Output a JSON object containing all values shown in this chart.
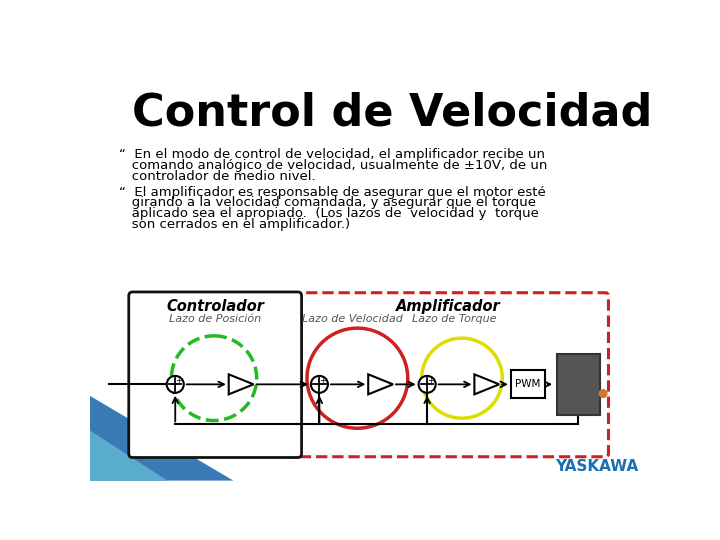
{
  "title": "Control de Velocidad",
  "title_fontsize": 32,
  "title_fontweight": "bold",
  "background_color": "#ffffff",
  "bullet1_line1": "“  En el modo de control de velocidad, el amplificador recibe un",
  "bullet1_line2": "   comando analógico de velocidad, usualmente de ±10V, de un",
  "bullet1_line3": "   controlador de medio nivel.",
  "bullet2_line1": "“  El amplificador es responsable de asegurar que el motor esté",
  "bullet2_line2": "   girando a la velocidad comandada, y asegurar que el torque",
  "bullet2_line3": "   aplicado sea el apropiado.  (Los lazos de  velocidad y  torque",
  "bullet2_line4": "   son cerrados en el amplificador.)",
  "bullet_fontsize": 9.5,
  "controlador_label": "Controlador",
  "amplificador_label": "Amplificador",
  "lazo_pos_label": "Lazo de Posición",
  "lazo_vel_label": "Lazo de Velocidad",
  "lazo_torque_label": "Lazo de Torque",
  "pwm_label": "PWM",
  "yaskawa_text": "YASKAWA",
  "yaskawa_color": "#1a6eb5",
  "green_circle_color": "#22bb22",
  "red_circle_color": "#cc2222",
  "yellow_circle_color": "#dddd00",
  "dashed_red_box_color": "#cc2222",
  "solid_black_box_color": "#111111",
  "diagonal_blue1": "#3a7ab5",
  "diagonal_blue2": "#5aaccc",
  "motor_color": "#444444",
  "motor_connector_color": "#cc7733"
}
